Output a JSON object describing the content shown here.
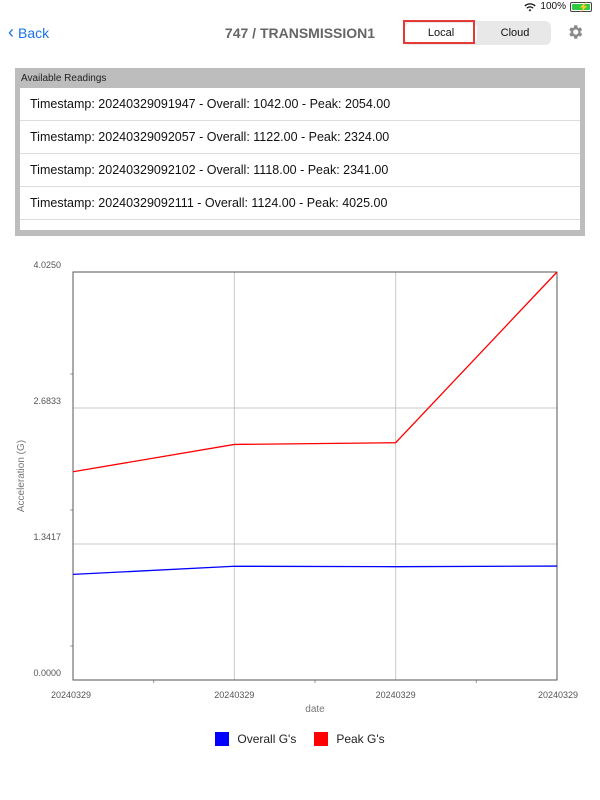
{
  "status_bar": {
    "battery_percent": "100%"
  },
  "nav": {
    "back_label": "Back",
    "title": "747 / TRANSMISSION1",
    "segments": [
      {
        "label": "Local",
        "selected": true
      },
      {
        "label": "Cloud",
        "selected": false
      }
    ]
  },
  "readings": {
    "title": "Available Readings",
    "items": [
      "Timestamp: 20240329091947 - Overall: 1042.00 - Peak: 2054.00",
      "Timestamp: 20240329092057 - Overall: 1122.00 - Peak: 2324.00",
      "Timestamp: 20240329092102 - Overall: 1118.00 - Peak: 2341.00",
      "Timestamp: 20240329092111 - Overall: 1124.00 - Peak: 4025.00"
    ]
  },
  "colors": {
    "accent": "#1a73e8",
    "highlight": "#e53935",
    "overall": "#0000ff",
    "peak": "#ff0000"
  },
  "chart_data": {
    "type": "line",
    "xlabel": "date",
    "ylabel": "Acceleration (G)",
    "x_tick_labels": [
      "20240329",
      "20240329",
      "20240329",
      "20240329"
    ],
    "y_tick_labels": [
      "0.0000",
      "1.3417",
      "2.6833",
      "4.0250"
    ],
    "ylim": [
      0,
      4.025
    ],
    "grid": true,
    "legend_position": "bottom",
    "series": [
      {
        "name": "Overall G's",
        "color": "#0000ff",
        "values": [
          1.042,
          1.122,
          1.118,
          1.124
        ]
      },
      {
        "name": "Peak G's",
        "color": "#ff0000",
        "values": [
          2.054,
          2.324,
          2.341,
          4.025
        ]
      }
    ]
  }
}
